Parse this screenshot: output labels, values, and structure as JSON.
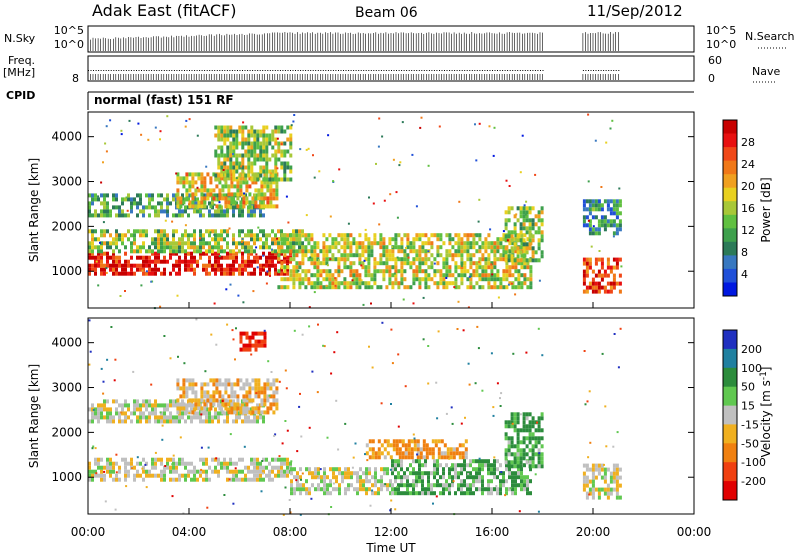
{
  "header": {
    "station": "Adak East (fitACF)",
    "beam": "Beam 06",
    "date": "11/Sep/2012"
  },
  "strips": {
    "nsky_label": "N.Sky",
    "nsky_ticks": [
      "10^5",
      "10^0"
    ],
    "nsky_right_ticks": [
      "10^5",
      "10^0"
    ],
    "nsearch_label": "N.Search",
    "freq_label": "Freq.",
    "freq_unit": "[MHz]",
    "freq_ticks": [
      "8"
    ],
    "nave_ticks": [
      "60",
      "0"
    ],
    "nave_label": "Nave",
    "cpid_label": "CPID",
    "cpid_value": "normal (fast) 151 RF"
  },
  "x_axis": {
    "label": "Time UT",
    "ticks": [
      "00:00",
      "04:00",
      "08:00",
      "12:00",
      "16:00",
      "20:00",
      "00:00"
    ]
  },
  "chart_data": [
    {
      "type": "heatmap",
      "title": "",
      "quantity": "Power",
      "xlabel": "Time UT",
      "ylabel": "Slant Range [km]",
      "x_range_hours": [
        0,
        24
      ],
      "ylim": [
        180,
        4550
      ],
      "y_ticks": [
        1000,
        2000,
        3000,
        4000
      ],
      "colorbar": {
        "label": "Power [dB]",
        "ticks": [
          "4",
          "8",
          "12",
          "16",
          "20",
          "24",
          "28"
        ],
        "colors": [
          "#0018e0",
          "#2050d8",
          "#3878c0",
          "#2c7a58",
          "#3ea04c",
          "#60c040",
          "#a8c838",
          "#e8d020",
          "#f0a020",
          "#f07818",
          "#f04818",
          "#e81010",
          "#c80000"
        ]
      },
      "data_gaps_hours": [
        [
          18.0,
          19.6
        ],
        [
          21.1,
          24.0
        ]
      ],
      "echo_regions": [
        {
          "t_start": 0.0,
          "t_end": 8.0,
          "range_km": [
            900,
            1400
          ],
          "power_db": 28
        },
        {
          "t_start": 0.0,
          "t_end": 8.5,
          "range_km": [
            1400,
            1900
          ],
          "power_db": 14
        },
        {
          "t_start": 0.0,
          "t_end": 7.0,
          "range_km": [
            2200,
            2700
          ],
          "power_db": 10
        },
        {
          "t_start": 3.5,
          "t_end": 7.5,
          "range_km": [
            2400,
            3200
          ],
          "power_db": 18
        },
        {
          "t_start": 5.0,
          "t_end": 8.0,
          "range_km": [
            3000,
            4200
          ],
          "power_db": 14
        },
        {
          "t_start": 7.5,
          "t_end": 17.5,
          "range_km": [
            600,
            1800
          ],
          "power_db": 16
        },
        {
          "t_start": 16.5,
          "t_end": 18.0,
          "range_km": [
            1200,
            2400
          ],
          "power_db": 14
        },
        {
          "t_start": 19.6,
          "t_end": 21.1,
          "range_km": [
            500,
            1300
          ],
          "power_db": 26
        },
        {
          "t_start": 19.6,
          "t_end": 21.1,
          "range_km": [
            1800,
            2600
          ],
          "power_db": 8
        }
      ]
    },
    {
      "type": "heatmap",
      "title": "",
      "quantity": "Velocity",
      "xlabel": "Time UT",
      "ylabel": "Slant Range [km]",
      "x_range_hours": [
        0,
        24
      ],
      "ylim": [
        180,
        4550
      ],
      "y_ticks": [
        1000,
        2000,
        3000,
        4000
      ],
      "colorbar": {
        "label": "Velocity [m s^-1]",
        "ticks": [
          "200",
          "100",
          "50",
          "15",
          "-15",
          "-50",
          "-100",
          "-200"
        ],
        "colors": [
          "#2030c0",
          "#2080a0",
          "#2c8c3c",
          "#60c850",
          "#c0c0c0",
          "#f0b020",
          "#f08010",
          "#f04010",
          "#e00000"
        ]
      },
      "data_gaps_hours": [
        [
          18.0,
          19.6
        ],
        [
          21.1,
          24.0
        ]
      ],
      "echo_regions": [
        {
          "t_start": 0.0,
          "t_end": 8.0,
          "range_km": [
            900,
            1400
          ],
          "velocity_ms": 0
        },
        {
          "t_start": 0.0,
          "t_end": 7.0,
          "range_km": [
            2200,
            2700
          ],
          "velocity_ms": 0
        },
        {
          "t_start": 3.5,
          "t_end": 7.5,
          "range_km": [
            2400,
            3200
          ],
          "velocity_ms": -20
        },
        {
          "t_start": 6.0,
          "t_end": 7.0,
          "range_km": [
            3800,
            4200
          ],
          "velocity_ms": -150
        },
        {
          "t_start": 8.0,
          "t_end": 12.0,
          "range_km": [
            600,
            1200
          ],
          "velocity_ms": 0
        },
        {
          "t_start": 11.0,
          "t_end": 15.0,
          "range_km": [
            1400,
            1800
          ],
          "velocity_ms": -40
        },
        {
          "t_start": 12.0,
          "t_end": 17.5,
          "range_km": [
            600,
            1400
          ],
          "velocity_ms": 30
        },
        {
          "t_start": 16.5,
          "t_end": 18.0,
          "range_km": [
            1200,
            2400
          ],
          "velocity_ms": 40
        },
        {
          "t_start": 19.6,
          "t_end": 21.1,
          "range_km": [
            500,
            1300
          ],
          "velocity_ms": 0
        }
      ]
    }
  ]
}
